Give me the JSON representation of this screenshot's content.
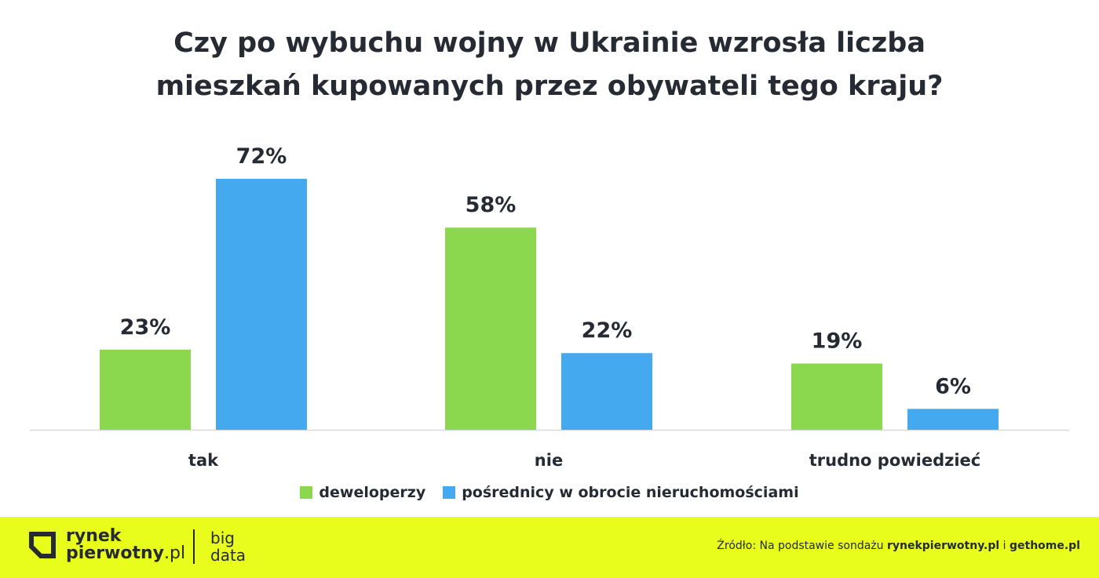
{
  "chart_data": {
    "type": "bar",
    "title": [
      "Czy po wybuchu wojny w Ukrainie wzrosła liczba",
      "mieszkań kupowanych przez obywateli tego kraju?"
    ],
    "categories": [
      "tak",
      "nie",
      "trudno powiedzieć"
    ],
    "series": [
      {
        "name": "deweloperzy",
        "values": [
          23,
          58,
          19
        ],
        "labels": [
          "23%",
          "58%",
          "19%"
        ],
        "color": "#8bd84f"
      },
      {
        "name": "pośrednicy w obrocie nieruchomościami",
        "values": [
          72,
          22,
          6
        ],
        "labels": [
          "72%",
          "22%",
          "6%"
        ],
        "color": "#44a9ee"
      }
    ],
    "ylim": [
      0,
      72
    ],
    "grid": false,
    "legend_position": "bottom"
  },
  "footer": {
    "logo_line1": "rynek",
    "logo_line2_bold": "pierwotny",
    "logo_line2_light": ".pl",
    "bigdata_line1": "big",
    "bigdata_line2": "data",
    "source_prefix": "Źródło: Na podstawie sondażu ",
    "source_site1": "rynekpierwotny.pl",
    "source_and": " i ",
    "source_site2": "gethome.pl"
  },
  "colors": {
    "footer_bg": "#e8fd1c",
    "text": "#262a33",
    "axis": "#d9d9d9"
  }
}
